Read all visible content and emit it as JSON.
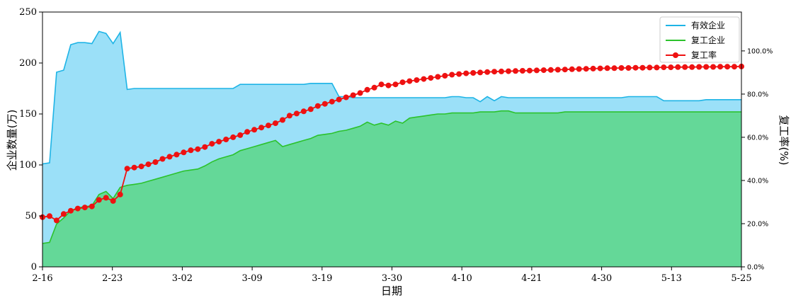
{
  "chart_data": {
    "type": "area",
    "title": "",
    "xlabel": "日期",
    "ylabel": "企业数量(万)",
    "y2label": "复工率(%)",
    "ylim": [
      0,
      250
    ],
    "y2lim": [
      0,
      118
    ],
    "yticks": [
      "0",
      "50",
      "100",
      "150",
      "200",
      "250"
    ],
    "y2ticks": [
      "0.0%",
      "20.0%",
      "40.0%",
      "60.0%",
      "80.0%",
      "100.0%"
    ],
    "xticks": [
      "2-16",
      "2-23",
      "3-02",
      "3-09",
      "3-19",
      "3-30",
      "4-10",
      "4-21",
      "4-30",
      "5-13",
      "5-25"
    ],
    "legend": {
      "position": "top-right",
      "entries": [
        "有效企业",
        "复工企业",
        "复工率"
      ]
    },
    "colors": {
      "effective_line": "#1eb4e6",
      "effective_fill": "#9be0f8",
      "resumed_line": "#2cc22c",
      "resumed_fill": "#64d898",
      "rate": "#ee1111"
    },
    "series": [
      {
        "name": "有效企业",
        "axis": "left",
        "values": [
          101,
          102,
          191,
          193,
          218,
          220,
          220,
          219,
          231,
          229,
          219,
          230,
          174,
          175,
          175,
          175,
          175,
          175,
          175,
          175,
          175,
          175,
          175,
          175,
          175,
          175,
          175,
          175,
          179,
          179,
          179,
          179,
          179,
          179,
          179,
          179,
          179,
          179,
          180,
          180,
          180,
          180,
          167,
          167,
          166,
          166,
          166,
          166,
          166,
          166,
          166,
          166,
          166,
          166,
          166,
          166,
          166,
          166,
          167,
          167,
          166,
          166,
          162,
          167,
          163,
          167,
          166,
          166,
          166,
          166,
          166,
          166,
          166,
          166,
          166,
          166,
          166,
          166,
          166,
          166,
          166,
          166,
          166,
          167,
          167,
          167,
          167,
          167,
          163,
          163,
          163,
          163,
          163,
          163,
          164,
          164,
          164,
          164,
          164,
          164
        ]
      },
      {
        "name": "复工企业",
        "axis": "left",
        "values": [
          23,
          24,
          42,
          48,
          55,
          58,
          59,
          60,
          71,
          74,
          67,
          78,
          80,
          81,
          82,
          84,
          86,
          88,
          90,
          92,
          94,
          95,
          96,
          99,
          103,
          106,
          108,
          110,
          114,
          116,
          118,
          120,
          122,
          124,
          118,
          120,
          122,
          124,
          126,
          129,
          130,
          131,
          133,
          134,
          136,
          138,
          142,
          139,
          141,
          139,
          143,
          141,
          146,
          147,
          148,
          149,
          150,
          150,
          151,
          151,
          151,
          151,
          152,
          152,
          152,
          153,
          153,
          151,
          151,
          151,
          151,
          151,
          151,
          151,
          152,
          152,
          152,
          152,
          152,
          152,
          152,
          152,
          152,
          152,
          152,
          152,
          152,
          152,
          152,
          152,
          152,
          152,
          152,
          152,
          152,
          152,
          152,
          152,
          152,
          152
        ]
      },
      {
        "name": "复工率",
        "axis": "right",
        "values": [
          23.0,
          23.5,
          21.5,
          24.5,
          26.0,
          27.0,
          27.5,
          28.0,
          31.0,
          32.0,
          30.5,
          33.5,
          45.5,
          46.0,
          46.5,
          47.5,
          48.5,
          50.0,
          51.0,
          52.0,
          53.0,
          54.0,
          54.5,
          55.5,
          57.0,
          58.0,
          59.0,
          60.0,
          61.0,
          62.5,
          63.5,
          64.5,
          65.5,
          66.5,
          68.0,
          70.0,
          71.0,
          72.0,
          73.0,
          74.5,
          75.5,
          76.5,
          77.5,
          78.5,
          79.5,
          80.5,
          82.0,
          83.0,
          84.5,
          84.0,
          84.5,
          85.5,
          86.0,
          86.5,
          87.0,
          87.5,
          88.0,
          88.5,
          89.0,
          89.3,
          89.6,
          89.8,
          90.0,
          90.2,
          90.4,
          90.5,
          90.6,
          90.7,
          90.8,
          90.9,
          91.0,
          91.1,
          91.2,
          91.3,
          91.4,
          91.5,
          91.6,
          91.7,
          91.8,
          91.9,
          92.0,
          92.0,
          92.1,
          92.1,
          92.2,
          92.2,
          92.3,
          92.3,
          92.4,
          92.4,
          92.5,
          92.5,
          92.5,
          92.6,
          92.6,
          92.6,
          92.7,
          92.7,
          92.7,
          92.8
        ]
      }
    ]
  }
}
